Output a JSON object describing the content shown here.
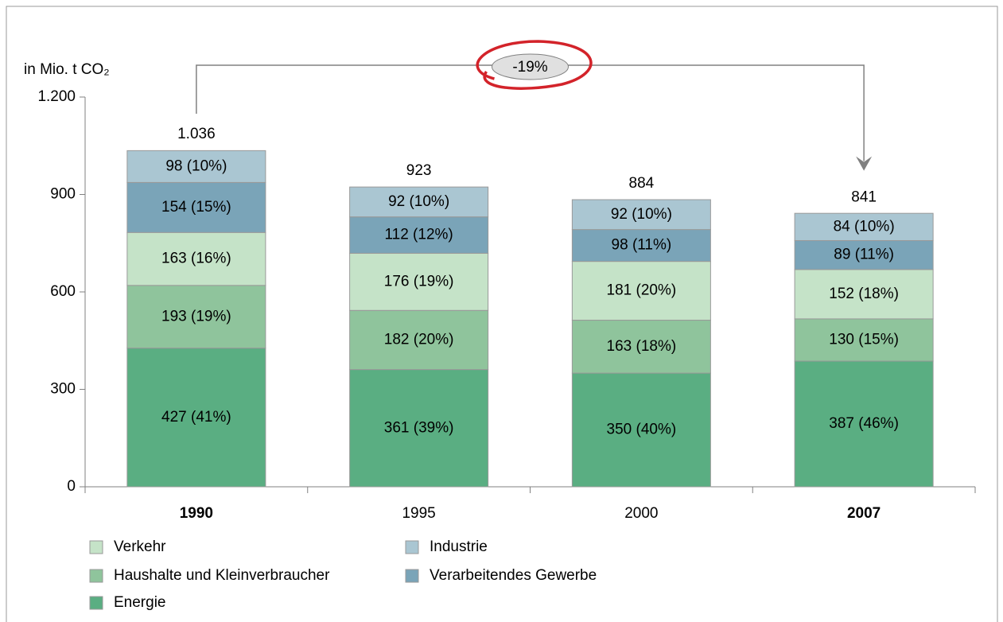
{
  "chart_data": {
    "type": "stacked_bar",
    "y_axis_label": "in Mio. t CO₂",
    "categories": [
      "1990",
      "1995",
      "2000",
      "2007"
    ],
    "ylim": [
      0,
      1200
    ],
    "yticks": [
      0,
      300,
      600,
      900,
      {
        "value": 1200,
        "label": "1.200"
      }
    ],
    "series": [
      {
        "name": "Energie",
        "color": "#5aae82",
        "values": [
          427,
          361,
          350,
          387
        ],
        "value_labels": [
          "427 (41%)",
          "361 (39%)",
          "350 (40%)",
          "387 (46%)"
        ]
      },
      {
        "name": "Haushalte und Kleinverbraucher",
        "color": "#8fc49c",
        "values": [
          193,
          182,
          163,
          130
        ],
        "value_labels": [
          "193 (19%)",
          "182 (20%)",
          "163 (18%)",
          "130 (15%)"
        ]
      },
      {
        "name": "Verkehr",
        "color": "#c5e3c8",
        "values": [
          163,
          176,
          181,
          152
        ],
        "value_labels": [
          "163 (16%)",
          "176 (19%)",
          "181 (20%)",
          "152 (18%)"
        ]
      },
      {
        "name": "Verarbeitendes Gewerbe",
        "color": "#7aa4b8",
        "values": [
          154,
          112,
          98,
          89
        ],
        "value_labels": [
          "154 (15%)",
          "112 (12%)",
          "98 (11%)",
          "89 (11%)"
        ]
      },
      {
        "name": "Industrie",
        "color": "#aac6d2",
        "values": [
          98,
          92,
          92,
          84
        ],
        "value_labels": [
          "98 (10%)",
          "92 (10%)",
          "92 (10%)",
          "84 (10%)"
        ]
      }
    ],
    "totals": {
      "values": [
        1036,
        923,
        884,
        841
      ],
      "value_labels": [
        "1.036",
        "923",
        "884",
        "841"
      ]
    },
    "annotation": {
      "label": "-19%",
      "from": 0,
      "to": 3
    }
  }
}
